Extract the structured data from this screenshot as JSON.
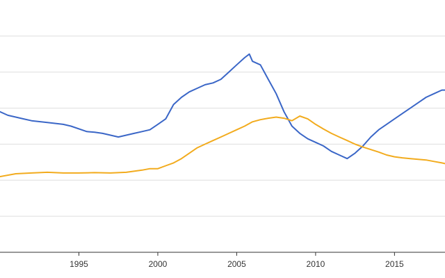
{
  "chart_data": {
    "type": "line",
    "title": "",
    "xlabel": "",
    "ylabel": "",
    "xlim": [
      1990.0,
      2018.2
    ],
    "ylim": [
      0,
      7
    ],
    "grid": true,
    "legend": "none",
    "x_ticks": [
      1995,
      2000,
      2005,
      2010,
      2015
    ],
    "x_tick_labels": [
      "1995",
      "2000",
      "2005",
      "2010",
      "2015"
    ],
    "y_gridlines": [
      1,
      2,
      3,
      4,
      5,
      6
    ],
    "series": [
      {
        "color": "#3a66c7",
        "x": [
          1990.0,
          1990.5,
          1991.0,
          1991.5,
          1992.0,
          1993.0,
          1994.0,
          1994.5,
          1995.5,
          1996.0,
          1996.5,
          1997.0,
          1997.5,
          1998.5,
          1999.0,
          1999.5,
          2000.0,
          2000.5,
          2001.0,
          2001.5,
          2002.0,
          2002.5,
          2003.0,
          2003.5,
          2004.0,
          2004.5,
          2005.0,
          2005.5,
          2005.8,
          2006.0,
          2006.5,
          2007.0,
          2007.5,
          2008.0,
          2008.5,
          2009.0,
          2009.5,
          2010.0,
          2010.5,
          2011.0,
          2011.5,
          2012.0,
          2012.5,
          2013.0,
          2013.5,
          2014.0,
          2014.5,
          2015.0,
          2015.5,
          2016.0,
          2016.5,
          2017.0,
          2017.5,
          2018.0,
          2018.2
        ],
        "y": [
          3.9,
          3.8,
          3.75,
          3.7,
          3.65,
          3.6,
          3.55,
          3.5,
          3.35,
          3.33,
          3.3,
          3.25,
          3.2,
          3.3,
          3.35,
          3.4,
          3.55,
          3.7,
          4.1,
          4.3,
          4.45,
          4.55,
          4.65,
          4.7,
          4.8,
          5.0,
          5.2,
          5.4,
          5.5,
          5.3,
          5.2,
          4.8,
          4.4,
          3.9,
          3.5,
          3.3,
          3.15,
          3.05,
          2.95,
          2.8,
          2.7,
          2.6,
          2.75,
          2.95,
          3.2,
          3.4,
          3.55,
          3.7,
          3.85,
          4.0,
          4.15,
          4.3,
          4.4,
          4.5,
          4.5
        ]
      },
      {
        "color": "#f2ab1d",
        "x": [
          1990.0,
          1991.0,
          1992.0,
          1993.0,
          1994.0,
          1995.0,
          1996.0,
          1997.0,
          1998.0,
          1999.0,
          1999.5,
          2000.0,
          2000.5,
          2001.0,
          2001.5,
          2002.0,
          2002.5,
          2003.0,
          2003.5,
          2004.0,
          2004.5,
          2005.0,
          2005.5,
          2006.0,
          2006.5,
          2007.0,
          2007.5,
          2008.0,
          2008.5,
          2009.0,
          2009.5,
          2010.0,
          2010.5,
          2011.0,
          2011.5,
          2012.0,
          2012.5,
          2013.0,
          2013.5,
          2014.0,
          2014.5,
          2015.0,
          2015.5,
          2016.0,
          2016.5,
          2017.0,
          2017.5,
          2018.0,
          2018.2
        ],
        "y": [
          2.1,
          2.18,
          2.2,
          2.22,
          2.2,
          2.2,
          2.21,
          2.2,
          2.22,
          2.28,
          2.32,
          2.32,
          2.4,
          2.48,
          2.6,
          2.75,
          2.9,
          3.0,
          3.1,
          3.2,
          3.3,
          3.4,
          3.5,
          3.62,
          3.68,
          3.72,
          3.75,
          3.72,
          3.65,
          3.78,
          3.7,
          3.55,
          3.42,
          3.3,
          3.2,
          3.1,
          3.0,
          2.92,
          2.85,
          2.78,
          2.7,
          2.65,
          2.62,
          2.6,
          2.58,
          2.56,
          2.52,
          2.48,
          2.46
        ]
      }
    ]
  }
}
